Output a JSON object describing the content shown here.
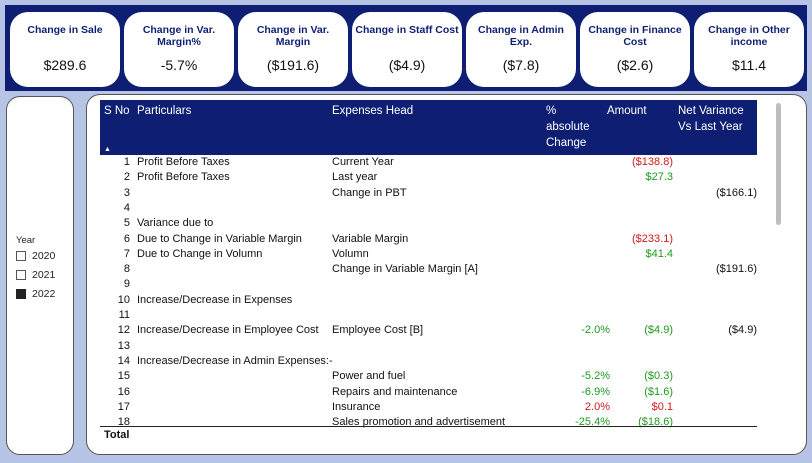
{
  "kpis": [
    {
      "title": "Change in Sale",
      "value": "$289.6"
    },
    {
      "title": "Change in Var. Margin%",
      "value": "-5.7%"
    },
    {
      "title": "Change in Var. Margin",
      "value": "($191.6)"
    },
    {
      "title": "Change in Staff Cost",
      "value": "($4.9)"
    },
    {
      "title": "Change in Admin Exp.",
      "value": "($7.8)"
    },
    {
      "title": "Change in Finance Cost",
      "value": "($2.6)"
    },
    {
      "title": "Change in Other income",
      "value": "$11.4"
    }
  ],
  "slicer": {
    "title": "Year",
    "items": [
      {
        "label": "2020",
        "checked": false
      },
      {
        "label": "2021",
        "checked": false
      },
      {
        "label": "2022",
        "checked": true
      }
    ]
  },
  "table": {
    "headers": {
      "sno": "S No",
      "particulars": "Particulars",
      "expenses_head": "Expenses Head",
      "pct_change": "% absolute Change",
      "amount": "Amount",
      "net_variance": "Net Variance Vs Last Year"
    },
    "rows": [
      {
        "sno": "1",
        "particulars": "Profit Before Taxes",
        "head": "Current Year",
        "pct": "",
        "pct_color": "",
        "amount": "($138.8)",
        "amount_color": "red",
        "net": ""
      },
      {
        "sno": "2",
        "particulars": "Profit Before Taxes",
        "head": "Last year",
        "pct": "",
        "pct_color": "",
        "amount": "$27.3",
        "amount_color": "green",
        "net": ""
      },
      {
        "sno": "3",
        "particulars": "",
        "head": "Change in PBT",
        "pct": "",
        "pct_color": "",
        "amount": "",
        "amount_color": "",
        "net": "($166.1)"
      },
      {
        "sno": "4",
        "particulars": "",
        "head": "",
        "pct": "",
        "pct_color": "",
        "amount": "",
        "amount_color": "",
        "net": ""
      },
      {
        "sno": "5",
        "particulars": "Variance due to",
        "head": "",
        "pct": "",
        "pct_color": "",
        "amount": "",
        "amount_color": "",
        "net": ""
      },
      {
        "sno": "6",
        "particulars": "Due to Change in Variable Margin",
        "head": "Variable Margin",
        "pct": "",
        "pct_color": "",
        "amount": "($233.1)",
        "amount_color": "red",
        "net": ""
      },
      {
        "sno": "7",
        "particulars": "Due to Change in Volumn",
        "head": "Volumn",
        "pct": "",
        "pct_color": "",
        "amount": "$41.4",
        "amount_color": "green",
        "net": ""
      },
      {
        "sno": "8",
        "particulars": "",
        "head": "Change in Variable Margin [A]",
        "pct": "",
        "pct_color": "",
        "amount": "",
        "amount_color": "",
        "net": "($191.6)"
      },
      {
        "sno": "9",
        "particulars": "",
        "head": "",
        "pct": "",
        "pct_color": "",
        "amount": "",
        "amount_color": "",
        "net": ""
      },
      {
        "sno": "10",
        "particulars": "Increase/Decrease in Expenses",
        "head": "",
        "pct": "",
        "pct_color": "",
        "amount": "",
        "amount_color": "",
        "net": ""
      },
      {
        "sno": "11",
        "particulars": "",
        "head": "",
        "pct": "",
        "pct_color": "",
        "amount": "",
        "amount_color": "",
        "net": ""
      },
      {
        "sno": "12",
        "particulars": "Increase/Decrease in Employee Cost",
        "head": "Employee Cost [B]",
        "pct": "-2.0%",
        "pct_color": "green",
        "amount": "($4.9)",
        "amount_color": "green",
        "net": "($4.9)"
      },
      {
        "sno": "13",
        "particulars": "",
        "head": "",
        "pct": "",
        "pct_color": "",
        "amount": "",
        "amount_color": "",
        "net": ""
      },
      {
        "sno": "14",
        "particulars": "Increase/Decrease in Admin Expenses:-",
        "head": "",
        "pct": "",
        "pct_color": "",
        "amount": "",
        "amount_color": "",
        "net": ""
      },
      {
        "sno": "15",
        "particulars": "",
        "head": "Power and fuel",
        "pct": "-5.2%",
        "pct_color": "green",
        "amount": "($0.3)",
        "amount_color": "green",
        "net": ""
      },
      {
        "sno": "16",
        "particulars": "",
        "head": "Repairs and maintenance",
        "pct": "-6.9%",
        "pct_color": "green",
        "amount": "($1.6)",
        "amount_color": "green",
        "net": ""
      },
      {
        "sno": "17",
        "particulars": "",
        "head": "Insurance",
        "pct": "2.0%",
        "pct_color": "red",
        "amount": "$0.1",
        "amount_color": "red",
        "net": ""
      },
      {
        "sno": "18",
        "particulars": "",
        "head": "Sales promotion and advertisement",
        "pct": "-25.4%",
        "pct_color": "green",
        "amount": "($18.6)",
        "amount_color": "green",
        "net": ""
      }
    ],
    "total_label": "Total",
    "sort_icon": "sort-ascending-icon"
  }
}
